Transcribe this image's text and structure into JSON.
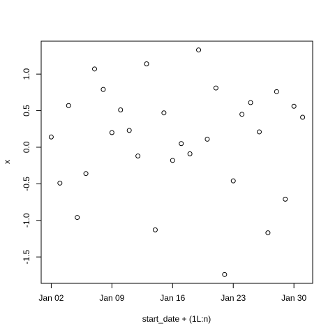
{
  "chart_data": {
    "type": "scatter",
    "xlabel": "start_date + (1L:n)",
    "ylabel": "x",
    "x": [
      2,
      3,
      4,
      5,
      6,
      7,
      8,
      9,
      10,
      11,
      12,
      13,
      14,
      15,
      16,
      17,
      18,
      19,
      20,
      21,
      22,
      23,
      24,
      25,
      26,
      27,
      28,
      29,
      30,
      31
    ],
    "values": [
      0.14,
      -0.49,
      0.57,
      -0.96,
      -0.36,
      1.07,
      0.79,
      0.2,
      0.51,
      0.23,
      -0.12,
      1.14,
      -1.13,
      0.47,
      -0.18,
      0.05,
      -0.09,
      1.33,
      0.11,
      0.81,
      -1.74,
      -0.46,
      0.45,
      0.61,
      0.21,
      -1.17,
      0.76,
      -0.71,
      0.56,
      0.41
    ],
    "color": "#000000",
    "xlim": [
      0.84,
      32.16
    ],
    "xticks": [
      {
        "value": 2,
        "label": "Jan 02"
      },
      {
        "value": 9,
        "label": "Jan 09"
      },
      {
        "value": 16,
        "label": "Jan 16"
      },
      {
        "value": 23,
        "label": "Jan 23"
      },
      {
        "value": 30,
        "label": "Jan 30"
      }
    ],
    "ylim": [
      -1.861,
      1.45
    ],
    "yticks": [
      -1.5,
      {
        "value": -1,
        "label": "-1.0"
      },
      -0.5,
      {
        "value": 0,
        "label": "0.0"
      },
      0.5,
      {
        "value": 1,
        "label": "1.0"
      }
    ]
  }
}
